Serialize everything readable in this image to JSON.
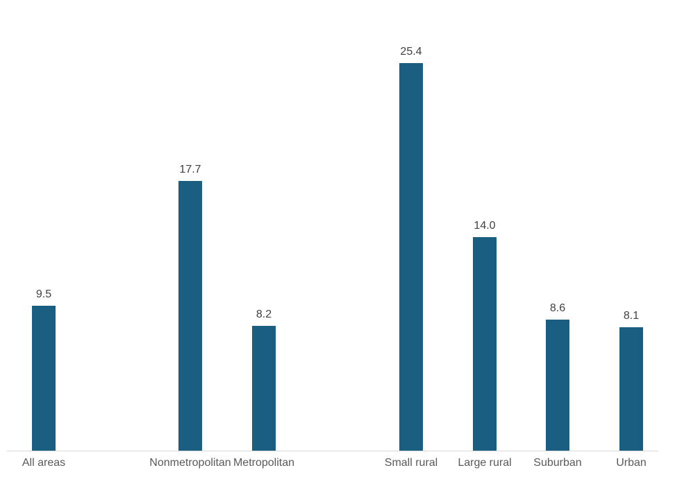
{
  "chart_data": {
    "type": "bar",
    "title": "",
    "xlabel": "",
    "ylabel": "",
    "categories": [
      "All areas",
      "Nonmetropolitan",
      "Metropolitan",
      "Small rural",
      "Large rural",
      "Suburban",
      "Urban"
    ],
    "values": [
      9.5,
      17.7,
      8.2,
      25.4,
      14.0,
      8.6,
      8.1
    ],
    "value_labels": [
      "9.5",
      "17.7",
      "8.2",
      "25.4",
      "14.0",
      "8.6",
      "8.1"
    ],
    "slot_indices": [
      0,
      2,
      3,
      5,
      6,
      7,
      8
    ],
    "total_slots": 9,
    "ylim": [
      0,
      29
    ],
    "grid": false,
    "legend": false,
    "y_axis_visible": false,
    "x_axis_line_visible": true,
    "colors": {
      "bar": "#1a5f82",
      "axis_line": "#d9d9d9",
      "value_label": "#404040",
      "category_label": "#595959",
      "background": "#ffffff"
    }
  }
}
